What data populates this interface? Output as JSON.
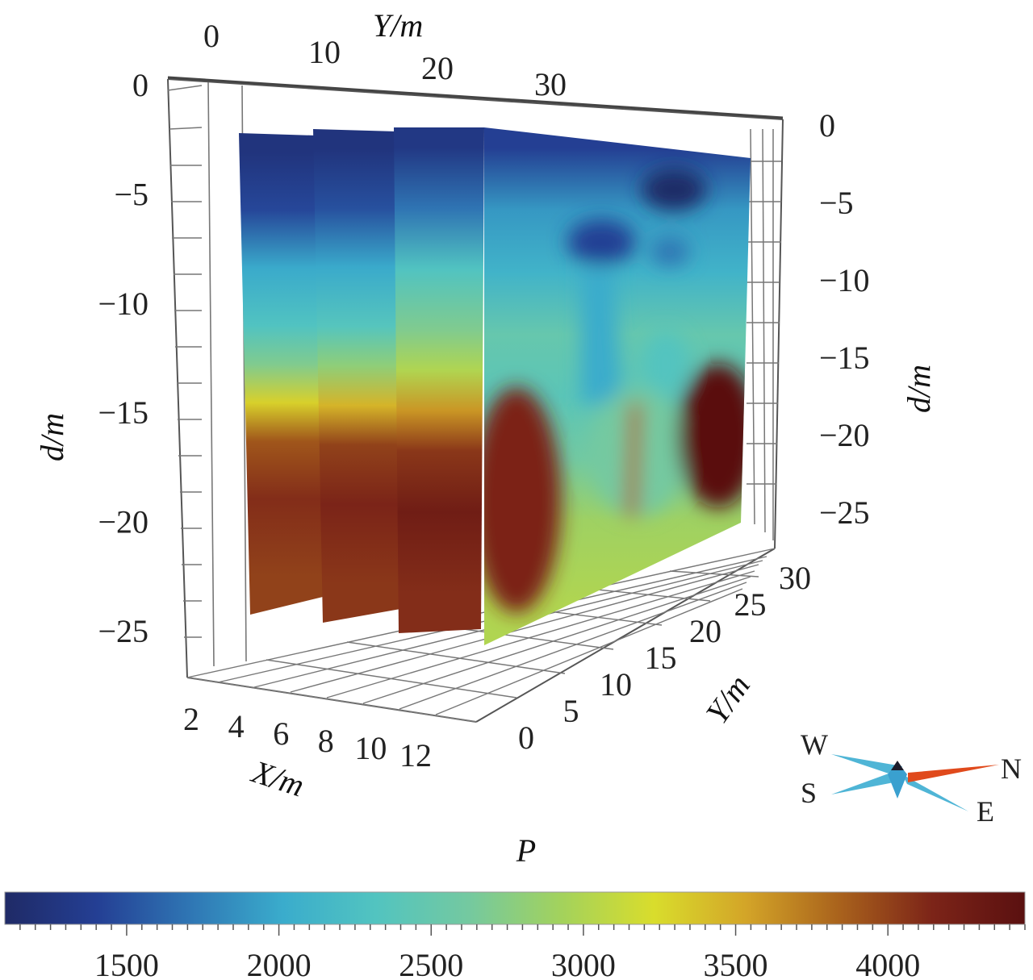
{
  "chart_data": {
    "type": "heatmap",
    "subtype": "3d-fence-slices",
    "colorbar": {
      "title": "P",
      "min": 1100,
      "max": 4450,
      "ticks": [
        1500,
        2000,
        2500,
        3000,
        3500,
        4000
      ],
      "tick_labels": [
        "1500",
        "2000",
        "2500",
        "3000",
        "3500",
        "4000"
      ],
      "colormap": [
        "#1f2a66",
        "#243f94",
        "#2f76b4",
        "#3aaccc",
        "#52c4c0",
        "#74c9a0",
        "#a3d25c",
        "#d9dd2c",
        "#d3a428",
        "#a9621c",
        "#7c2418",
        "#5a1010"
      ]
    },
    "axes": {
      "x": {
        "label": "X/m",
        "ticks": [
          2,
          4,
          6,
          8,
          10,
          12
        ],
        "tick_labels": [
          "2",
          "4",
          "6",
          "8",
          "10",
          "12"
        ]
      },
      "y_top": {
        "label": "Y/m",
        "ticks": [
          0,
          10,
          20,
          30
        ],
        "tick_labels": [
          "0",
          "10",
          "20",
          "30"
        ]
      },
      "y_bottom": {
        "label": "Y/m",
        "ticks": [
          0,
          5,
          10,
          15,
          20,
          25,
          30
        ],
        "tick_labels": [
          "0",
          "5",
          "10",
          "15",
          "20",
          "25",
          "30"
        ]
      },
      "d_left": {
        "label": "d/m",
        "ticks": [
          0,
          -5,
          -10,
          -15,
          -20,
          -25
        ],
        "tick_labels": [
          "0",
          "−5",
          "−10",
          "−15",
          "−20",
          "−25"
        ]
      },
      "d_right": {
        "label": "d/m",
        "ticks": [
          0,
          -5,
          -10,
          -15,
          -20,
          -25
        ],
        "tick_labels": [
          "0",
          "−5",
          "−10",
          "−15",
          "−20",
          "−25"
        ]
      }
    },
    "slices": [
      {
        "depth_profile": [
          [
            -2,
            1250
          ],
          [
            -5,
            1450
          ],
          [
            -8,
            2000
          ],
          [
            -11,
            2300
          ],
          [
            -13,
            2700
          ],
          [
            -15,
            3300
          ],
          [
            -17,
            3900
          ],
          [
            -20,
            4100
          ],
          [
            -24,
            4000
          ]
        ]
      },
      {
        "depth_profile": [
          [
            -2,
            1250
          ],
          [
            -5,
            1500
          ],
          [
            -8,
            2000
          ],
          [
            -11,
            2350
          ],
          [
            -13,
            2800
          ],
          [
            -15,
            3450
          ],
          [
            -17,
            4000
          ],
          [
            -20,
            4150
          ],
          [
            -24,
            4050
          ]
        ]
      },
      {
        "depth_profile": [
          [
            -2,
            1300
          ],
          [
            -5,
            1700
          ],
          [
            -8,
            2300
          ],
          [
            -11,
            2700
          ],
          [
            -13,
            3000
          ],
          [
            -15,
            3600
          ],
          [
            -17,
            4050
          ],
          [
            -20,
            4250
          ],
          [
            -24,
            4100
          ]
        ]
      },
      {
        "depth_profile": [
          [
            -2,
            1400
          ],
          [
            -5,
            1900
          ],
          [
            -8,
            2100
          ],
          [
            -11,
            2500
          ],
          [
            -14,
            2400
          ],
          [
            -17,
            2600
          ],
          [
            -20,
            2900
          ],
          [
            -24,
            3000
          ]
        ]
      }
    ],
    "compass": {
      "labels": [
        "W",
        "S",
        "N",
        "E"
      ]
    }
  }
}
